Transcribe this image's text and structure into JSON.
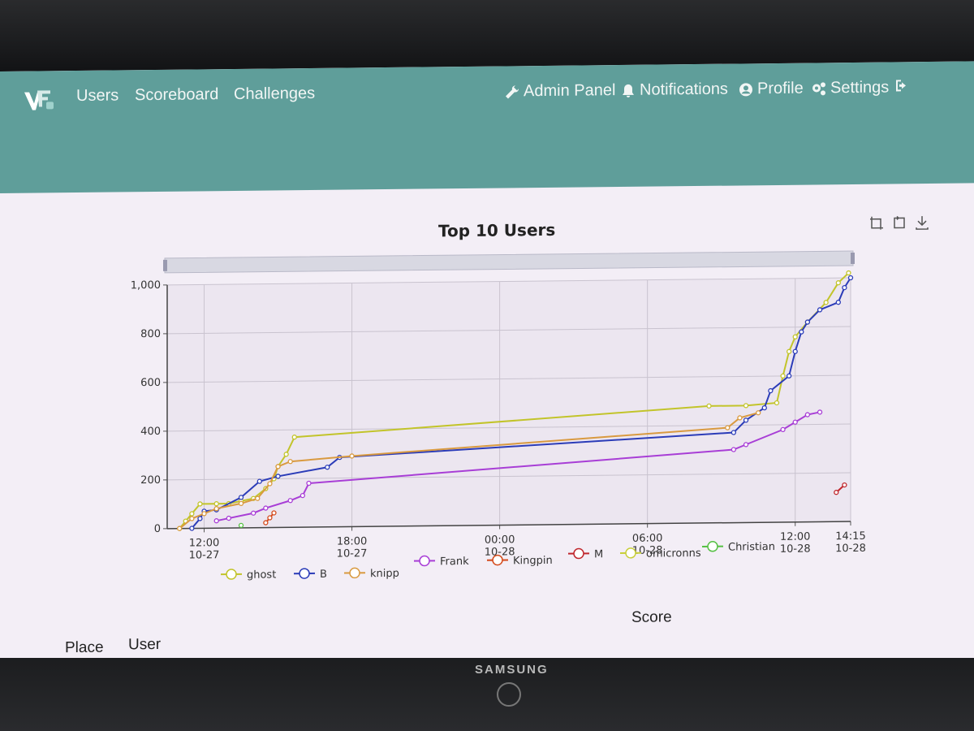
{
  "nav": {
    "left_links": [
      "Users",
      "Scoreboard",
      "Challenges"
    ],
    "admin_label": "Admin Panel",
    "notifications_label": "Notifications",
    "profile_label": "Profile",
    "settings_label": "Settings",
    "icons": {
      "admin": "wrench-icon",
      "notifications": "bell-icon",
      "profile": "user-circle-icon",
      "settings": "gears-icon",
      "logout": "logout-icon"
    }
  },
  "table": {
    "place_header": "Place",
    "user_header": "User",
    "score_header": "Score"
  },
  "device": {
    "brand": "SAMSUNG"
  },
  "chart_data": {
    "type": "line",
    "title": "Top 10 Users",
    "xlabel": "",
    "ylabel": "",
    "ylim": [
      0,
      1000
    ],
    "xlim": [
      "2020-10-27 10:30",
      "2020-10-28 14:15"
    ],
    "yticks": [
      "0",
      "200",
      "400",
      "600",
      "800",
      "1,000"
    ],
    "xticks": [
      {
        "time": "2020-10-27 12:00",
        "label1": "12:00",
        "label2": "10-27"
      },
      {
        "time": "2020-10-27 18:00",
        "label1": "18:00",
        "label2": "10-27"
      },
      {
        "time": "2020-10-28 00:00",
        "label1": "00:00",
        "label2": "10-28"
      },
      {
        "time": "2020-10-28 06:00",
        "label1": "06:00",
        "label2": "10-28"
      },
      {
        "time": "2020-10-28 12:00",
        "label1": "12:00",
        "label2": "10-28"
      },
      {
        "time": "2020-10-28 14:15",
        "label1": "14:15",
        "label2": "10-28"
      }
    ],
    "grid": true,
    "legend_position": "bottom",
    "series": [
      {
        "name": "ghost",
        "color": "#c2c42a",
        "points": [
          [
            "2020-10-27 11:00",
            0
          ],
          [
            "2020-10-27 11:15",
            30
          ],
          [
            "2020-10-27 11:30",
            60
          ],
          [
            "2020-10-27 11:50",
            100
          ],
          [
            "2020-10-27 12:30",
            100
          ],
          [
            "2020-10-27 13:00",
            100
          ],
          [
            "2020-10-27 13:30",
            110
          ],
          [
            "2020-10-27 14:00",
            120
          ],
          [
            "2020-10-27 14:30",
            160
          ],
          [
            "2020-10-27 14:50",
            200
          ],
          [
            "2020-10-27 15:00",
            250
          ],
          [
            "2020-10-27 15:20",
            300
          ],
          [
            "2020-10-27 15:40",
            370
          ],
          [
            "2020-10-28 08:30",
            480
          ],
          [
            "2020-10-28 10:00",
            480
          ],
          [
            "2020-10-28 11:15",
            490
          ],
          [
            "2020-10-28 11:30",
            600
          ],
          [
            "2020-10-28 11:45",
            700
          ],
          [
            "2020-10-28 12:00",
            760
          ],
          [
            "2020-10-28 12:30",
            820
          ],
          [
            "2020-10-28 13:15",
            900
          ],
          [
            "2020-10-28 13:45",
            980
          ],
          [
            "2020-10-28 14:10",
            1020
          ]
        ]
      },
      {
        "name": "B",
        "color": "#2b3cb8",
        "points": [
          [
            "2020-10-27 11:30",
            0
          ],
          [
            "2020-10-27 11:50",
            40
          ],
          [
            "2020-10-27 12:00",
            70
          ],
          [
            "2020-10-27 12:30",
            75
          ],
          [
            "2020-10-27 13:30",
            125
          ],
          [
            "2020-10-27 14:15",
            190
          ],
          [
            "2020-10-27 15:00",
            210
          ],
          [
            "2020-10-27 17:00",
            245
          ],
          [
            "2020-10-27 17:30",
            285
          ],
          [
            "2020-10-28 09:30",
            370
          ],
          [
            "2020-10-28 10:00",
            420
          ],
          [
            "2020-10-28 10:45",
            470
          ],
          [
            "2020-10-28 11:00",
            540
          ],
          [
            "2020-10-28 11:45",
            600
          ],
          [
            "2020-10-28 12:00",
            700
          ],
          [
            "2020-10-28 12:15",
            780
          ],
          [
            "2020-10-28 12:30",
            820
          ],
          [
            "2020-10-28 13:00",
            870
          ],
          [
            "2020-10-28 13:45",
            900
          ],
          [
            "2020-10-28 14:00",
            960
          ],
          [
            "2020-10-28 14:15",
            1000
          ]
        ]
      },
      {
        "name": "knipp",
        "color": "#d99a40",
        "points": [
          [
            "2020-10-27 11:00",
            0
          ],
          [
            "2020-10-27 11:30",
            40
          ],
          [
            "2020-10-27 12:00",
            60
          ],
          [
            "2020-10-27 12:30",
            80
          ],
          [
            "2020-10-27 13:30",
            100
          ],
          [
            "2020-10-27 14:10",
            120
          ],
          [
            "2020-10-27 14:40",
            180
          ],
          [
            "2020-10-27 15:00",
            250
          ],
          [
            "2020-10-27 15:30",
            270
          ],
          [
            "2020-10-27 18:00",
            290
          ],
          [
            "2020-10-28 09:15",
            390
          ],
          [
            "2020-10-28 09:45",
            430
          ],
          [
            "2020-10-28 10:30",
            450
          ]
        ]
      },
      {
        "name": "Frank",
        "color": "#a83ed6",
        "points": [
          [
            "2020-10-27 12:30",
            30
          ],
          [
            "2020-10-27 13:00",
            40
          ],
          [
            "2020-10-27 14:00",
            60
          ],
          [
            "2020-10-27 14:30",
            80
          ],
          [
            "2020-10-27 15:30",
            110
          ],
          [
            "2020-10-27 16:00",
            130
          ],
          [
            "2020-10-27 16:15",
            180
          ],
          [
            "2020-10-28 09:30",
            300
          ],
          [
            "2020-10-28 10:00",
            320
          ],
          [
            "2020-10-28 11:30",
            380
          ],
          [
            "2020-10-28 12:00",
            410
          ],
          [
            "2020-10-28 12:30",
            440
          ],
          [
            "2020-10-28 13:00",
            450
          ]
        ]
      },
      {
        "name": "Kingpin",
        "color": "#d44a1c",
        "points": [
          [
            "2020-10-27 14:30",
            20
          ],
          [
            "2020-10-27 14:40",
            40
          ],
          [
            "2020-10-27 14:50",
            60
          ]
        ]
      },
      {
        "name": "M",
        "color": "#c0272d",
        "points": [
          [
            "2020-10-28 13:40",
            120
          ],
          [
            "2020-10-28 14:00",
            150
          ]
        ]
      },
      {
        "name": "omicronns",
        "color": "#c8cf3a",
        "points": []
      },
      {
        "name": "Christian",
        "color": "#55c043",
        "points": [
          [
            "2020-10-27 13:30",
            10
          ]
        ]
      }
    ]
  }
}
